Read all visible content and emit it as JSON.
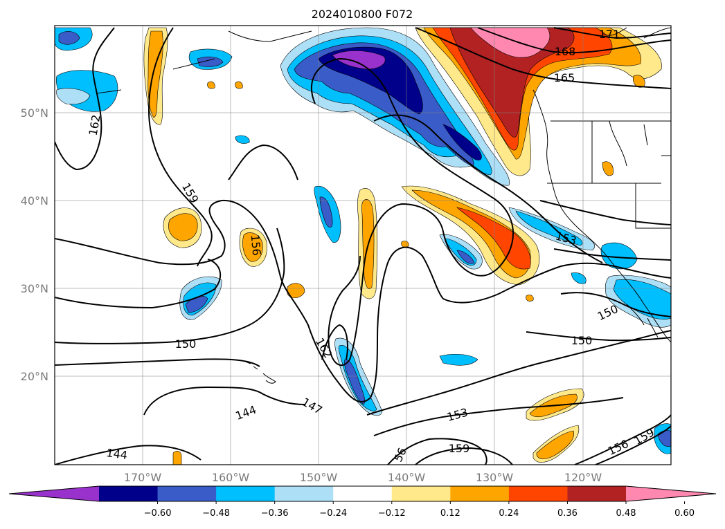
{
  "title": "2024010800 F072",
  "map": {
    "lon_range": [
      -180,
      -110
    ],
    "lat_range": [
      10,
      60
    ],
    "gridlines": true,
    "lon_labels": [
      "170°W",
      "160°W",
      "150°W",
      "140°W",
      "130°W",
      "120°W"
    ],
    "lat_labels": [
      "50°N",
      "40°N",
      "30°N",
      "20°N"
    ],
    "contour_labels": [
      "171",
      "168",
      "165",
      "162",
      "159",
      "156",
      "153",
      "150",
      "150",
      "150",
      "162",
      "147",
      "144",
      "144",
      "153",
      "159",
      "56",
      "156",
      "159"
    ]
  },
  "colorbar": {
    "tick_labels": [
      "−0.60",
      "−0.48",
      "−0.36",
      "−0.24",
      "−0.12",
      "0.12",
      "0.24",
      "0.36",
      "0.48",
      "0.60"
    ],
    "colors": [
      "#9932CC",
      "#00008B",
      "#3A5CC8",
      "#00BFFF",
      "#ADDFF7",
      "#FFFFFF",
      "#FFE98A",
      "#FFA500",
      "#FF4500",
      "#B22222",
      "#FF88B0"
    ],
    "extend": "both"
  }
}
